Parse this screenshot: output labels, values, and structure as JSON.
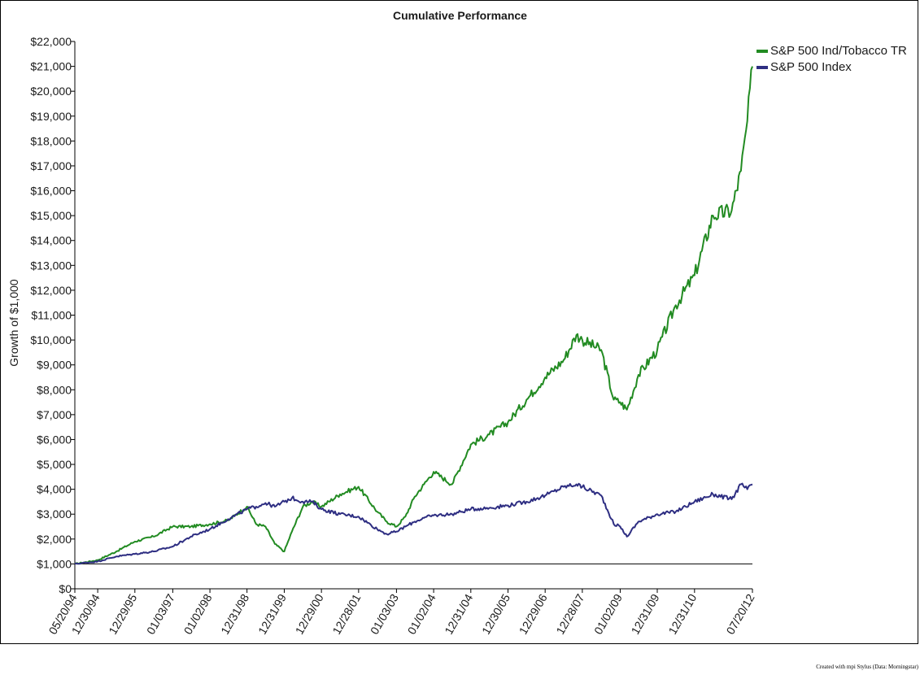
{
  "chart_data": {
    "type": "line",
    "title": "Cumulative Performance",
    "ylabel": "Growth of $1,000",
    "xlabel": "",
    "ylim": [
      0,
      22000
    ],
    "yticks": [
      "$0",
      "$1,000",
      "$2,000",
      "$3,000",
      "$4,000",
      "$5,000",
      "$6,000",
      "$7,000",
      "$8,000",
      "$9,000",
      "$10,000",
      "$11,000",
      "$12,000",
      "$13,000",
      "$14,000",
      "$15,000",
      "$16,000",
      "$17,000",
      "$18,000",
      "$19,000",
      "$20,000",
      "$21,000",
      "$22,000"
    ],
    "xticks": [
      "05/20/94",
      "12/30/94",
      "12/29/95",
      "01/03/97",
      "01/02/98",
      "12/31/98",
      "12/31/99",
      "12/29/00",
      "12/28/01",
      "01/03/03",
      "01/02/04",
      "12/31/04",
      "12/30/05",
      "12/29/06",
      "12/28/07",
      "01/02/09",
      "12/31/09",
      "12/31/10",
      "07/20/12"
    ],
    "xlim": [
      "1994-05-20",
      "2012-07-20"
    ],
    "reference_line": 1000,
    "legend_position": "top-right",
    "series": [
      {
        "name": "S&P 500 Ind/Tobacco TR",
        "color": "#228B22",
        "x": [
          "1994-05-20",
          "1994-12-30",
          "1995-06-30",
          "1995-12-29",
          "1996-06-28",
          "1997-01-03",
          "1997-06-30",
          "1998-01-02",
          "1998-06-30",
          "1998-12-31",
          "1999-03-31",
          "1999-06-30",
          "1999-09-30",
          "1999-12-31",
          "2000-03-15",
          "2000-06-30",
          "2000-09-29",
          "2000-12-29",
          "2001-06-29",
          "2001-12-28",
          "2002-06-28",
          "2002-09-30",
          "2003-01-03",
          "2003-03-31",
          "2003-06-30",
          "2003-09-30",
          "2004-01-02",
          "2004-06-30",
          "2004-12-31",
          "2005-06-30",
          "2005-12-30",
          "2006-06-30",
          "2006-12-29",
          "2007-06-29",
          "2007-10-31",
          "2007-12-28",
          "2008-06-30",
          "2008-10-31",
          "2009-01-02",
          "2009-03-09",
          "2009-06-30",
          "2009-12-31",
          "2010-06-30",
          "2010-12-31",
          "2011-06-30",
          "2011-12-30",
          "2012-03-30",
          "2012-05-31",
          "2012-07-20"
        ],
        "values": [
          1000,
          1150,
          1500,
          1900,
          2100,
          2500,
          2500,
          2600,
          2750,
          3300,
          2600,
          2500,
          1800,
          1500,
          2300,
          3300,
          3500,
          3300,
          3800,
          4100,
          3100,
          2700,
          2500,
          2900,
          3700,
          4200,
          4700,
          4200,
          5800,
          6200,
          6700,
          7600,
          8500,
          9200,
          10200,
          10000,
          9600,
          7600,
          7500,
          7200,
          8600,
          9600,
          11400,
          12600,
          15000,
          15200,
          16800,
          18800,
          21000
        ]
      },
      {
        "name": "S&P 500 Index",
        "color": "#2E2E82",
        "x": [
          "1994-05-20",
          "1994-12-30",
          "1995-06-30",
          "1995-12-29",
          "1996-06-28",
          "1997-01-03",
          "1997-06-30",
          "1998-01-02",
          "1998-06-30",
          "1998-12-31",
          "1999-03-31",
          "1999-06-30",
          "1999-09-30",
          "1999-12-31",
          "2000-03-15",
          "2000-06-30",
          "2000-09-29",
          "2000-12-29",
          "2001-06-29",
          "2001-12-28",
          "2002-06-28",
          "2002-09-30",
          "2003-01-03",
          "2003-03-31",
          "2003-06-30",
          "2003-09-30",
          "2004-01-02",
          "2004-06-30",
          "2004-12-31",
          "2005-06-30",
          "2005-12-30",
          "2006-06-30",
          "2006-12-29",
          "2007-06-29",
          "2007-10-31",
          "2007-12-28",
          "2008-06-30",
          "2008-10-31",
          "2009-01-02",
          "2009-03-09",
          "2009-06-30",
          "2009-12-31",
          "2010-06-30",
          "2010-12-31",
          "2011-06-30",
          "2011-12-30",
          "2012-03-30",
          "2012-05-31",
          "2012-07-20"
        ],
        "values": [
          1000,
          1100,
          1300,
          1400,
          1500,
          1700,
          2100,
          2400,
          2800,
          3200,
          3300,
          3450,
          3300,
          3500,
          3650,
          3500,
          3500,
          3200,
          3000,
          2900,
          2400,
          2200,
          2300,
          2500,
          2700,
          2850,
          2950,
          3000,
          3200,
          3250,
          3350,
          3500,
          3750,
          4100,
          4200,
          4100,
          3750,
          2600,
          2500,
          2100,
          2700,
          3000,
          3100,
          3500,
          3800,
          3600,
          4200,
          4000,
          4200
        ]
      }
    ]
  },
  "credit": "Created with mpi Stylus (Data: Morningstar)"
}
